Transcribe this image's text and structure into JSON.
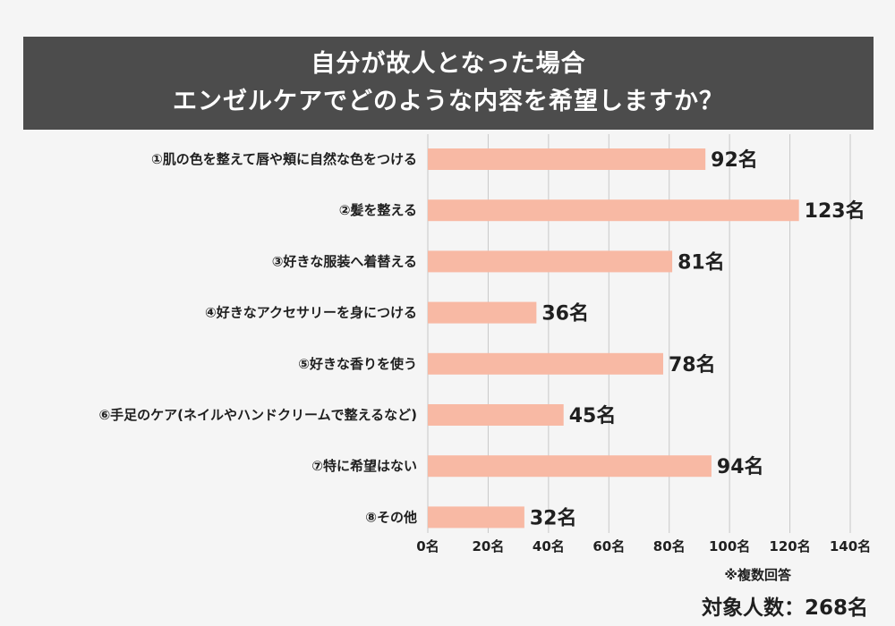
{
  "title_lines": [
    "自分が故人となった場合",
    "エンゼルケアでどのような内容を希望しますか？"
  ],
  "footnote": "※複数回答",
  "respondents": "対象人数：268名",
  "colors": {
    "bar": "#f8b9a4",
    "header_bg": "#4c4c4c",
    "grid": "#c8c8c8"
  },
  "chart_data": {
    "type": "bar",
    "orientation": "horizontal",
    "title": "自分が故人となった場合 エンゼルケアでどのような内容を希望しますか？",
    "value_suffix": "名",
    "categories": [
      "①肌の色を整えて唇や頬に自然な色をつける",
      "②髪を整える",
      "③好きな服装へ着替える",
      "④好きなアクセサリーを身につける",
      "⑤好きな香りを使う",
      "⑥手足のケア(ネイルやハンドクリームで整えるなど)",
      "⑦特に希望はない",
      "⑧その他"
    ],
    "values": [
      92,
      123,
      81,
      36,
      78,
      45,
      94,
      32
    ],
    "xlim": [
      0,
      140
    ],
    "xticks": [
      0,
      20,
      40,
      60,
      80,
      100,
      120,
      140
    ],
    "xtick_labels": [
      "0名",
      "20名",
      "40名",
      "60名",
      "80名",
      "100名",
      "120名",
      "140名"
    ],
    "grid": true
  }
}
